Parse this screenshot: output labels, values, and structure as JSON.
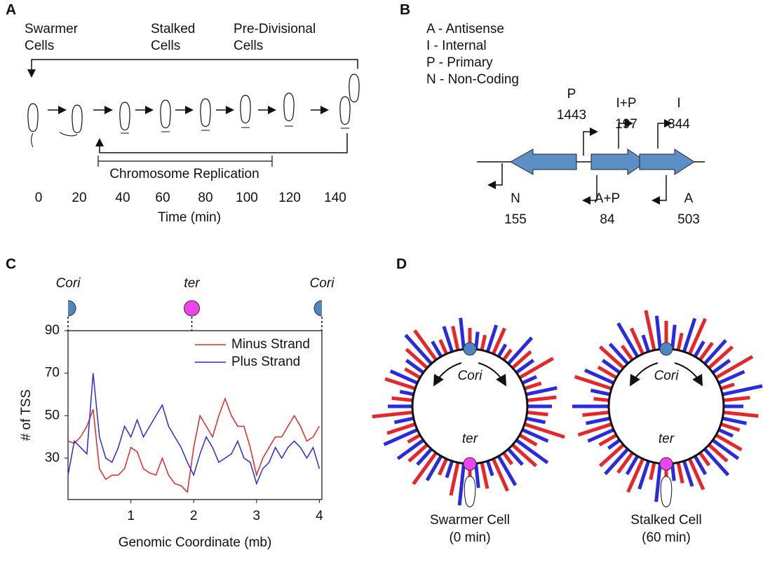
{
  "panels": {
    "a": {
      "label": "A",
      "stages": [
        [
          "Swarmer",
          "Cells"
        ],
        [
          "Stalked",
          "Cells"
        ],
        [
          "Pre-Divisional",
          "Cells"
        ]
      ],
      "replication": "Chromosome Replication",
      "time_ticks": [
        0,
        20,
        40,
        60,
        80,
        100,
        120,
        140
      ],
      "time_label": "Time (min)"
    },
    "b": {
      "label": "B",
      "legend": [
        "A - Antisense",
        "I - Internal",
        "P - Primary",
        "N - Non-Coding"
      ],
      "tss": [
        {
          "type": "P",
          "count": 1443
        },
        {
          "type": "I+P",
          "count": 197
        },
        {
          "type": "I",
          "count": 344
        },
        {
          "type": "N",
          "count": 155
        },
        {
          "type": "A+P",
          "count": 84
        },
        {
          "type": "A",
          "count": 503
        }
      ]
    },
    "c": {
      "label": "C"
    },
    "d": {
      "label": "D",
      "cells": [
        {
          "name": "Swarmer Cell",
          "time": "(0 min)",
          "ori": "Cori",
          "ter": "ter",
          "minus": [
            30,
            22,
            40,
            18,
            35,
            55,
            25,
            42,
            30,
            60,
            28,
            45,
            20,
            50,
            38,
            30,
            48,
            25,
            55,
            35,
            20,
            42,
            58,
            30,
            45,
            25,
            40,
            52,
            22,
            35
          ],
          "plus": [
            25,
            40,
            20,
            50,
            30,
            22,
            45,
            35,
            28,
            40,
            55,
            30,
            48,
            22,
            35,
            60,
            25,
            40,
            30,
            45,
            52,
            28,
            35,
            20,
            42,
            30,
            55,
            25,
            38,
            45
          ]
        },
        {
          "name": "Stalked Cell",
          "time": "(60 min)",
          "ori": "Cori",
          "ter": "ter",
          "minus": [
            40,
            25,
            55,
            30,
            45,
            60,
            20,
            38,
            50,
            28,
            42,
            35,
            22,
            48,
            30,
            40,
            25,
            52,
            35,
            45,
            28,
            50,
            38,
            22,
            55,
            30,
            45,
            25,
            40,
            58
          ],
          "plus": [
            35,
            50,
            25,
            45,
            30,
            40,
            58,
            28,
            35,
            22,
            45,
            50,
            30,
            38,
            25,
            55,
            42,
            30,
            48,
            20,
            40,
            35,
            52,
            28,
            45,
            30,
            38,
            55,
            25,
            48
          ]
        }
      ]
    }
  },
  "chart_data": {
    "type": "line",
    "x": [
      0,
      0.1,
      0.2,
      0.3,
      0.4,
      0.5,
      0.6,
      0.7,
      0.8,
      0.9,
      1.0,
      1.1,
      1.2,
      1.3,
      1.4,
      1.5,
      1.6,
      1.7,
      1.8,
      1.9,
      2.0,
      2.1,
      2.2,
      2.3,
      2.4,
      2.5,
      2.6,
      2.7,
      2.8,
      2.9,
      3.0,
      3.1,
      3.2,
      3.3,
      3.4,
      3.5,
      3.6,
      3.7,
      3.8,
      3.9,
      4.0
    ],
    "series": [
      {
        "name": "Minus Strand",
        "color": "#e8262a",
        "values": [
          38,
          37,
          40,
          45,
          53,
          25,
          20,
          22,
          22,
          25,
          35,
          33,
          25,
          23,
          22,
          30,
          22,
          18,
          17,
          14,
          35,
          50,
          45,
          40,
          50,
          58,
          50,
          45,
          45,
          35,
          22,
          30,
          35,
          40,
          40,
          45,
          50,
          45,
          38,
          40,
          45
        ]
      },
      {
        "name": "Plus Strand",
        "color": "#2a2ae0",
        "values": [
          22,
          38,
          35,
          32,
          70,
          40,
          30,
          28,
          35,
          45,
          40,
          48,
          40,
          45,
          50,
          55,
          45,
          40,
          35,
          28,
          22,
          32,
          40,
          35,
          28,
          30,
          32,
          38,
          30,
          28,
          18,
          25,
          28,
          35,
          30,
          35,
          38,
          35,
          30,
          35,
          25
        ]
      }
    ],
    "xlim": [
      0,
      4.04
    ],
    "ylim": [
      10.5,
      90
    ],
    "xticks": [
      1,
      2,
      3,
      4
    ],
    "yticks": [
      30,
      50,
      70,
      90
    ],
    "xlabel": "Genomic Coordinate (mb)",
    "ylabel": "# of TSS",
    "markers": [
      {
        "label": "Cori",
        "x": 0,
        "color": "#4f86c0"
      },
      {
        "label": "ter",
        "x": 1.97,
        "color": "#ee44ee"
      },
      {
        "label": "Cori",
        "x": 4.04,
        "color": "#4f86c0"
      }
    ],
    "legend": "upper right"
  }
}
